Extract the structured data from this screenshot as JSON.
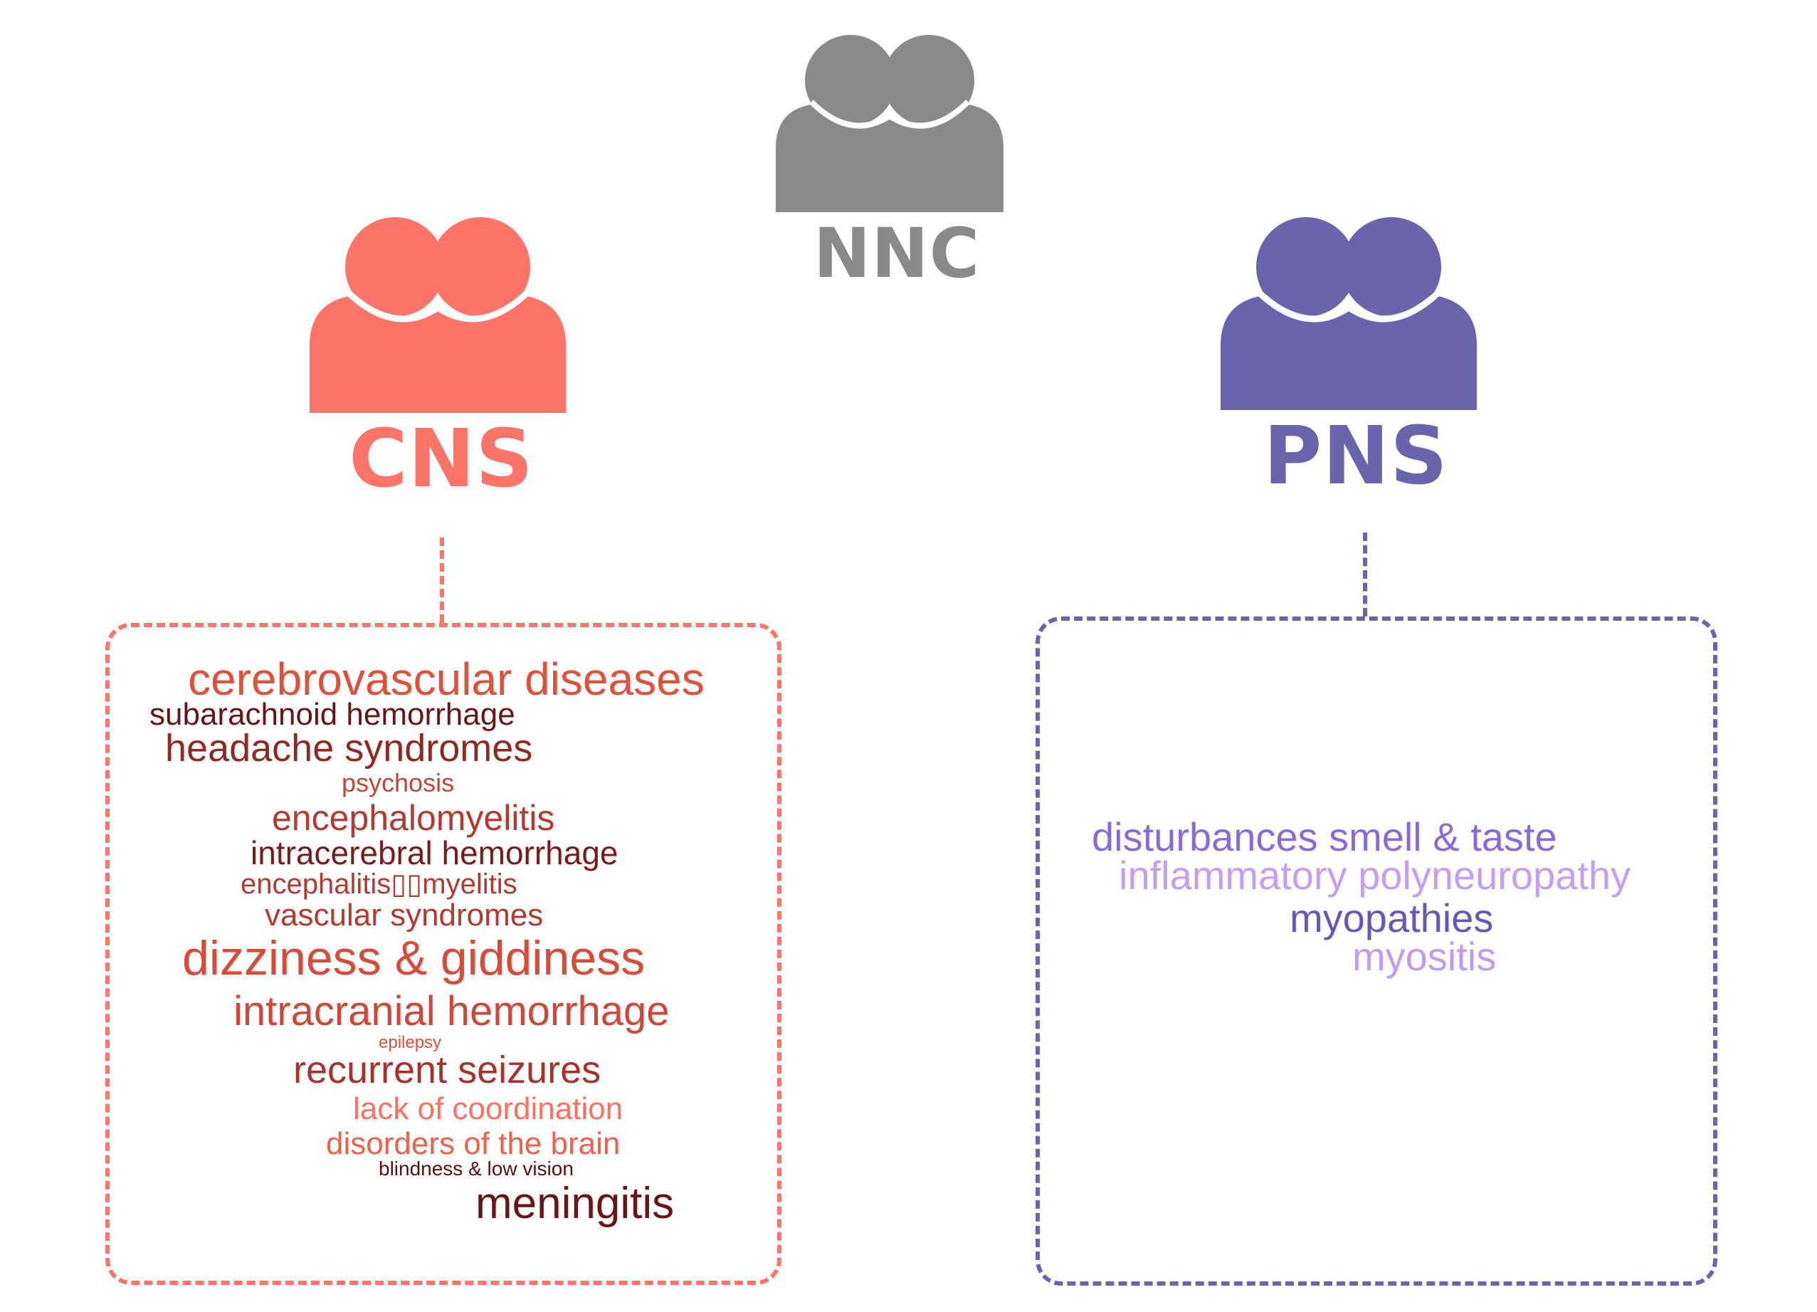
{
  "groups": {
    "nnc": {
      "label": "NNC",
      "color": "#8a8a8a"
    },
    "cns": {
      "label": "CNS",
      "color": "#ff7468"
    },
    "pns": {
      "label": "PNS",
      "color": "#6a64ac"
    }
  },
  "cns_terms": [
    {
      "text": "cerebrovascular diseases",
      "color": "#e0503a"
    },
    {
      "text": "subarachnoid hemorrhage",
      "color": "#6b1418"
    },
    {
      "text": "headache syndromes",
      "color": "#8e2a22"
    },
    {
      "text": "psychosis",
      "color": "#c8443a"
    },
    {
      "text": "encephalomyelitis",
      "color": "#b43a30"
    },
    {
      "text": "intracerebral hemorrhage",
      "color": "#7a1a1c"
    },
    {
      "text": "encephalitis▯▯myelitis",
      "color": "#b43a30"
    },
    {
      "text": "vascular syndromes",
      "color": "#b43a30"
    },
    {
      "text": "dizziness & giddiness",
      "color": "#d94a38"
    },
    {
      "text": "intracranial hemorrhage",
      "color": "#d24638"
    },
    {
      "text": "epilepsy",
      "color": "#e0503a"
    },
    {
      "text": "recurrent seizures",
      "color": "#a8322a"
    },
    {
      "text": "lack of coordination",
      "color": "#ff7060"
    },
    {
      "text": "disorders of the brain",
      "color": "#f0604c"
    },
    {
      "text": "blindness & low vision",
      "color": "#5a1010"
    },
    {
      "text": "meningitis",
      "color": "#6a1416"
    }
  ],
  "pns_terms": [
    {
      "text": "disturbances smell & taste",
      "color": "#8a6ad8"
    },
    {
      "text": "inflammatory polyneuropathy",
      "color": "#c49ef0"
    },
    {
      "text": "myopathies",
      "color": "#6458b8"
    },
    {
      "text": "myositis",
      "color": "#c09cf0"
    }
  ]
}
